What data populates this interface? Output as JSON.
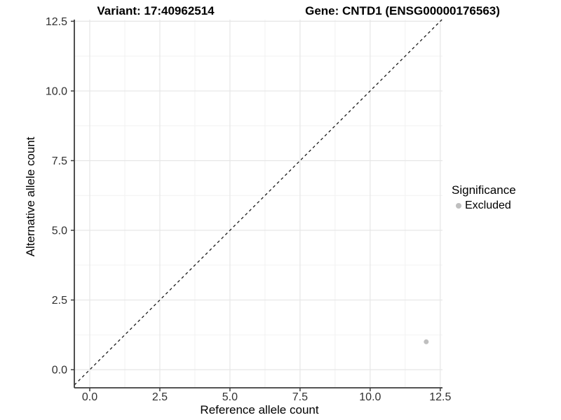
{
  "chart_data": {
    "type": "scatter",
    "titles": {
      "left": "Variant: 17:40962514",
      "right": "Gene: CNTD1 (ENSG00000176563)"
    },
    "xlabel": "Reference allele count",
    "ylabel": "Alternative allele count",
    "x_ticks": [
      0,
      2.5,
      5,
      7.5,
      10,
      12.5
    ],
    "y_ticks": [
      0,
      2.5,
      5,
      7.5,
      10,
      12.5
    ],
    "x_tick_labels": [
      "0.0",
      "2.5",
      "5.0",
      "7.5",
      "10.0",
      "12.5"
    ],
    "y_tick_labels": [
      "0.0",
      "2.5",
      "5.0",
      "7.5",
      "10.0",
      "12.5"
    ],
    "x_minor_ticks": [
      1.25,
      3.75,
      6.25,
      8.75,
      11.25
    ],
    "y_minor_ticks": [
      1.25,
      3.75,
      6.25,
      8.75,
      11.25
    ],
    "xlim": [
      -0.55,
      12.58
    ],
    "ylim": [
      -0.65,
      12.56
    ],
    "grid": true,
    "legend_position": "right",
    "reference_line": {
      "slope": 1,
      "intercept": 0,
      "style": "dashed",
      "color": "#1a1a1a"
    },
    "series": [
      {
        "name": "Excluded",
        "color": "#bfbfbf",
        "points": [
          [
            12,
            1
          ]
        ]
      }
    ],
    "legend": {
      "title": "Significance",
      "items": [
        {
          "label": "Excluded",
          "color": "#bfbfbf"
        }
      ]
    },
    "colors": {
      "background": "#ffffff",
      "grid_major": "#e6e6e6",
      "grid_minor": "#f2f2f2",
      "axis_line": "#3c3c3c",
      "tick_label": "#303030",
      "point": "#bfbfbf"
    }
  }
}
